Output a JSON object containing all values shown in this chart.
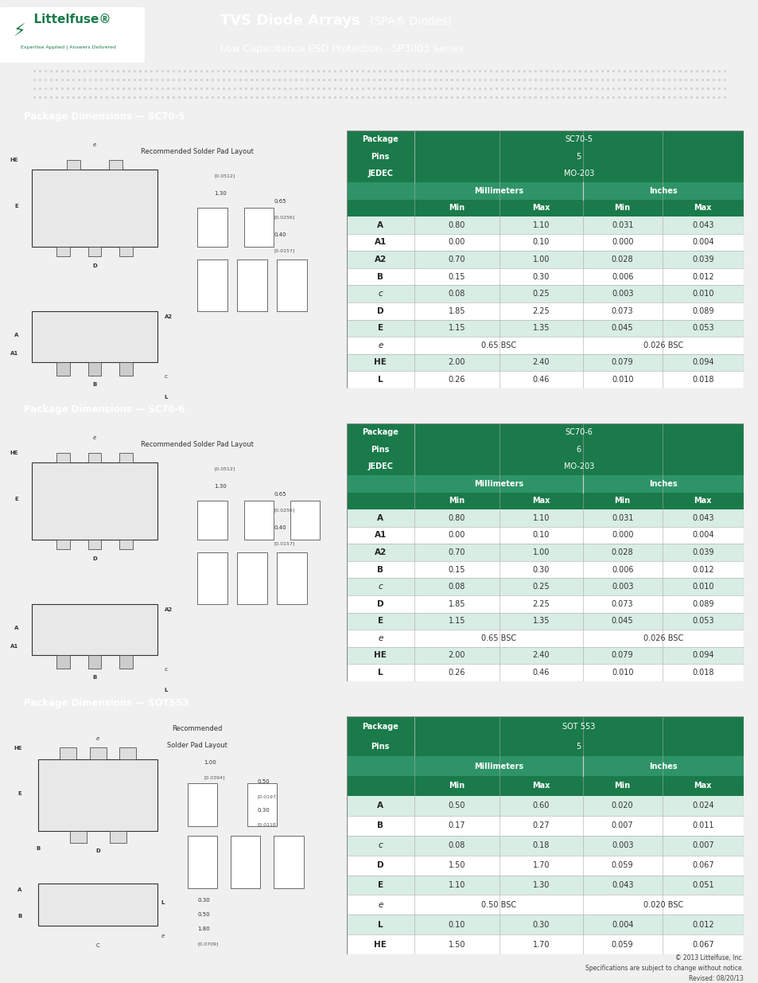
{
  "header_bg": "#1a7a4a",
  "header_text_color": "#ffffff",
  "page_bg": "#f5f5f5",
  "section_header_bg": "#1a7a4a",
  "section_header_text": "#ffffff",
  "table_header_bg": "#1a7a4a",
  "table_header_text": "#ffffff",
  "table_subheader_bg": "#2a8a5a",
  "table_row_alt_bg": "#d8ede4",
  "table_row_bg": "#ffffff",
  "table_border_color": "#888888",
  "table_text_color": "#333333",
  "title_bold": "TVS Diode Arrays",
  "title_normal": " (SPA® Diodes)",
  "subtitle": "Low Capacitance ESD Protection - SP3003 Series",
  "sections": [
    {
      "title": "Package Dimensions — SC70-5",
      "package": "SC70-5",
      "pins": "5",
      "jedec": "MO-203",
      "rows": [
        {
          "param": "A",
          "mm_min": "0.80",
          "mm_max": "1.10",
          "in_min": "0.031",
          "in_max": "0.043",
          "bold": true,
          "alt": true
        },
        {
          "param": "A1",
          "mm_min": "0.00",
          "mm_max": "0.10",
          "in_min": "0.000",
          "in_max": "0.004",
          "bold": true,
          "alt": false
        },
        {
          "param": "A2",
          "mm_min": "0.70",
          "mm_max": "1.00",
          "in_min": "0.028",
          "in_max": "0.039",
          "bold": true,
          "alt": true
        },
        {
          "param": "B",
          "mm_min": "0.15",
          "mm_max": "0.30",
          "in_min": "0.006",
          "in_max": "0.012",
          "bold": true,
          "alt": false
        },
        {
          "param": "c",
          "mm_min": "0.08",
          "mm_max": "0.25",
          "in_min": "0.003",
          "in_max": "0.010",
          "bold": false,
          "alt": true
        },
        {
          "param": "D",
          "mm_min": "1.85",
          "mm_max": "2.25",
          "in_min": "0.073",
          "in_max": "0.089",
          "bold": true,
          "alt": false
        },
        {
          "param": "E",
          "mm_min": "1.15",
          "mm_max": "1.35",
          "in_min": "0.045",
          "in_max": "0.053",
          "bold": true,
          "alt": true
        },
        {
          "param": "e",
          "mm_min": null,
          "mm_max": null,
          "in_min": null,
          "in_max": null,
          "bold": false,
          "alt": false,
          "mm_bsc": "0.65 BSC",
          "in_bsc": "0.026 BSC"
        },
        {
          "param": "HE",
          "mm_min": "2.00",
          "mm_max": "2.40",
          "in_min": "0.079",
          "in_max": "0.094",
          "bold": true,
          "alt": true
        },
        {
          "param": "L",
          "mm_min": "0.26",
          "mm_max": "0.46",
          "in_min": "0.010",
          "in_max": "0.018",
          "bold": true,
          "alt": false
        }
      ]
    },
    {
      "title": "Package Dimensions — SC70-6",
      "package": "SC70-6",
      "pins": "6",
      "jedec": "MO-203",
      "rows": [
        {
          "param": "A",
          "mm_min": "0.80",
          "mm_max": "1.10",
          "in_min": "0.031",
          "in_max": "0.043",
          "bold": true,
          "alt": true
        },
        {
          "param": "A1",
          "mm_min": "0.00",
          "mm_max": "0.10",
          "in_min": "0.000",
          "in_max": "0.004",
          "bold": true,
          "alt": false
        },
        {
          "param": "A2",
          "mm_min": "0.70",
          "mm_max": "1.00",
          "in_min": "0.028",
          "in_max": "0.039",
          "bold": true,
          "alt": true
        },
        {
          "param": "B",
          "mm_min": "0.15",
          "mm_max": "0.30",
          "in_min": "0.006",
          "in_max": "0.012",
          "bold": true,
          "alt": false
        },
        {
          "param": "c",
          "mm_min": "0.08",
          "mm_max": "0.25",
          "in_min": "0.003",
          "in_max": "0.010",
          "bold": false,
          "alt": true
        },
        {
          "param": "D",
          "mm_min": "1.85",
          "mm_max": "2.25",
          "in_min": "0.073",
          "in_max": "0.089",
          "bold": true,
          "alt": false
        },
        {
          "param": "E",
          "mm_min": "1.15",
          "mm_max": "1.35",
          "in_min": "0.045",
          "in_max": "0.053",
          "bold": true,
          "alt": true
        },
        {
          "param": "e",
          "mm_min": null,
          "mm_max": null,
          "in_min": null,
          "in_max": null,
          "bold": false,
          "alt": false,
          "mm_bsc": "0.65 BSC",
          "in_bsc": "0.026 BSC"
        },
        {
          "param": "HE",
          "mm_min": "2.00",
          "mm_max": "2.40",
          "in_min": "0.079",
          "in_max": "0.094",
          "bold": true,
          "alt": true
        },
        {
          "param": "L",
          "mm_min": "0.26",
          "mm_max": "0.46",
          "in_min": "0.010",
          "in_max": "0.018",
          "bold": true,
          "alt": false
        }
      ]
    },
    {
      "title": "Package Dimensions — SOT553",
      "package": "SOT 553",
      "pins": "5",
      "jedec": null,
      "rows": [
        {
          "param": "A",
          "mm_min": "0.50",
          "mm_max": "0.60",
          "in_min": "0.020",
          "in_max": "0.024",
          "bold": true,
          "alt": true
        },
        {
          "param": "B",
          "mm_min": "0.17",
          "mm_max": "0.27",
          "in_min": "0.007",
          "in_max": "0.011",
          "bold": true,
          "alt": false
        },
        {
          "param": "c",
          "mm_min": "0.08",
          "mm_max": "0.18",
          "in_min": "0.003",
          "in_max": "0.007",
          "bold": false,
          "alt": true
        },
        {
          "param": "D",
          "mm_min": "1.50",
          "mm_max": "1.70",
          "in_min": "0.059",
          "in_max": "0.067",
          "bold": true,
          "alt": false
        },
        {
          "param": "E",
          "mm_min": "1.10",
          "mm_max": "1.30",
          "in_min": "0.043",
          "in_max": "0.051",
          "bold": true,
          "alt": true
        },
        {
          "param": "e",
          "mm_min": null,
          "mm_max": null,
          "in_min": null,
          "in_max": null,
          "bold": false,
          "alt": false,
          "mm_bsc": "0.50 BSC",
          "in_bsc": "0.020 BSC"
        },
        {
          "param": "L",
          "mm_min": "0.10",
          "mm_max": "0.30",
          "in_min": "0.004",
          "in_max": "0.012",
          "bold": true,
          "alt": true
        },
        {
          "param": "HE",
          "mm_min": "1.50",
          "mm_max": "1.70",
          "in_min": "0.059",
          "in_max": "0.067",
          "bold": true,
          "alt": false
        }
      ]
    }
  ],
  "footer_text": "© 2013 Littelfuse, Inc.\nSpecifications are subject to change without notice.\nRevised: 08/20/13"
}
